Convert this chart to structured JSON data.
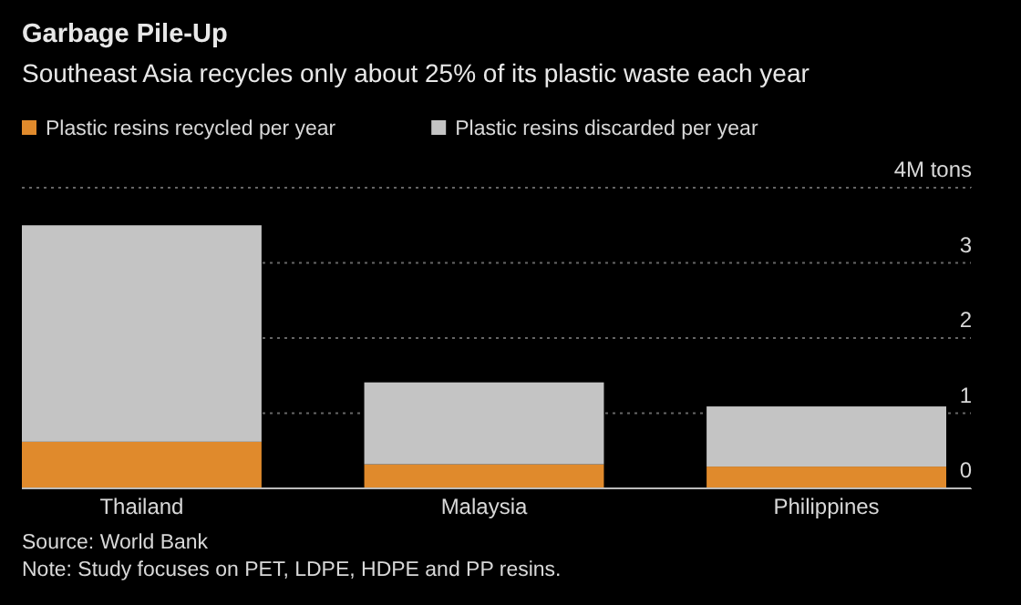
{
  "chart_data": {
    "type": "bar",
    "title": "Garbage Pile-Up",
    "subtitle": "Southeast Asia recycles only about 25% of its plastic waste each year",
    "categories": [
      "Thailand",
      "Malaysia",
      "Philippines"
    ],
    "stacked": true,
    "series": [
      {
        "name": "Plastic resins recycled per year",
        "color": "#e08a2c",
        "values": [
          0.62,
          0.32,
          0.29
        ]
      },
      {
        "name": "Plastic resins discarded per year",
        "color": "#c4c4c4",
        "values": [
          2.88,
          1.09,
          0.8
        ]
      }
    ],
    "ylim": [
      0,
      4
    ],
    "yticks": [
      0,
      1,
      2,
      3,
      {
        "value": 4,
        "label": "4M tons"
      }
    ],
    "grid": "y",
    "legend": "top left",
    "annotations": [
      "Source: World Bank",
      "Note: Study focuses on PET, LDPE, HDPE and PP resins."
    ]
  }
}
